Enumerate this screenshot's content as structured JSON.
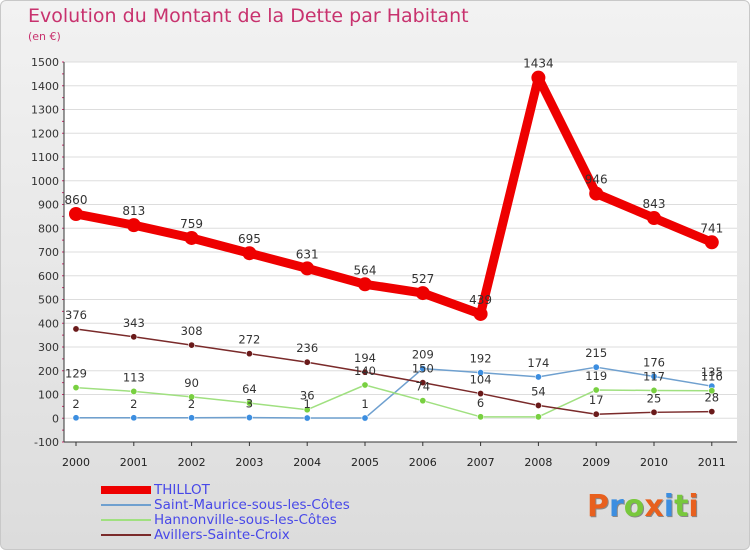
{
  "title": "Evolution du Montant de la Dette par Habitant",
  "subtitle": "(en €)",
  "logo": {
    "text": "Proxiti",
    "colors": [
      "#e8601e",
      "#3c8ee0",
      "#78c83c",
      "#e8601e",
      "#3c8ee0",
      "#78c83c",
      "#e8601e"
    ]
  },
  "chart_data": {
    "type": "line",
    "title": "Evolution du Montant de la Dette par Habitant",
    "ylabel": "(en €)",
    "xlabel": "",
    "x": [
      "2000",
      "2001",
      "2002",
      "2003",
      "2004",
      "2005",
      "2006",
      "2007",
      "2008",
      "2009",
      "2010",
      "2011"
    ],
    "ylim": [
      -100,
      1500
    ],
    "yticks": [
      -100,
      0,
      100,
      200,
      300,
      400,
      500,
      600,
      700,
      800,
      900,
      1000,
      1100,
      1200,
      1300,
      1400,
      1500
    ],
    "grid": "horizontal",
    "legend_position": "bottom-left",
    "series": [
      {
        "name": "THILLOT",
        "color": "#ee0000",
        "values": [
          860,
          813,
          759,
          695,
          631,
          564,
          527,
          439,
          1434,
          946,
          843,
          741
        ],
        "labels": [
          "860",
          "813",
          "759",
          "695",
          "631",
          "564",
          "527",
          "439",
          "1434",
          "946",
          "843",
          "741"
        ]
      },
      {
        "name": "Saint-Maurice-sous-les-Côtes",
        "color": "#6fa0cf",
        "marker": "#3c8ee0",
        "values": [
          2,
          2,
          2,
          3,
          1,
          1,
          209,
          192,
          174,
          215,
          176,
          135
        ],
        "labels": [
          "2",
          "2",
          "2",
          "3",
          "1",
          "1",
          "209",
          "192",
          "174",
          "215",
          "176",
          "135"
        ]
      },
      {
        "name": "Hannonville-sous-les-Côtes",
        "color": "#a0e080",
        "marker": "#78d040",
        "values": [
          129,
          113,
          90,
          64,
          36,
          140,
          74,
          6,
          6,
          119,
          117,
          116
        ],
        "labels": [
          "129",
          "113",
          "90",
          "64",
          "36",
          "140",
          "74",
          "6",
          "",
          "119",
          "117",
          "116"
        ]
      },
      {
        "name": "Avillers-Sainte-Croix",
        "color": "#7a2a2a",
        "marker": "#6a1a1a",
        "values": [
          376,
          343,
          308,
          272,
          236,
          194,
          150,
          104,
          54,
          17,
          25,
          28
        ],
        "labels": [
          "376",
          "343",
          "308",
          "272",
          "236",
          "194",
          "150",
          "104",
          "54",
          "17",
          "25",
          "28"
        ]
      }
    ]
  }
}
